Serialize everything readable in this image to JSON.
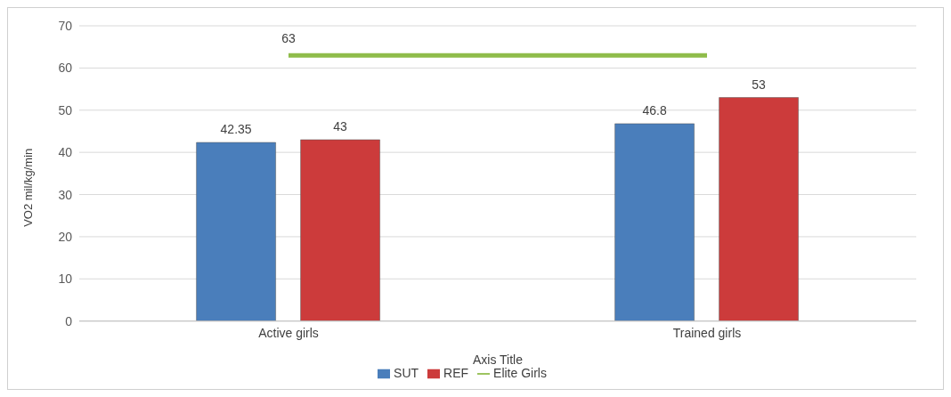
{
  "chart_data": {
    "type": "bar",
    "categories": [
      "Active girls",
      "Trained girls"
    ],
    "xlabel": "Axis Title",
    "ylabel": "VO2 mil/kg/min",
    "ylim": [
      0,
      70
    ],
    "yticks": [
      0,
      10,
      20,
      30,
      40,
      50,
      60,
      70
    ],
    "grid": "y",
    "legend": "bottom",
    "data_labels": true,
    "marker": "none",
    "series": [
      {
        "name": "SUT",
        "color": "#4a7ebb",
        "values": [
          42.35,
          46.8
        ]
      },
      {
        "name": "REF",
        "color": "#cc3b3b",
        "values": [
          43,
          53
        ]
      },
      {
        "name": "Elite Girls",
        "type": "line",
        "color": "#8fbc4a",
        "values": [
          63,
          63
        ],
        "value_labels": [
          "63",
          null
        ]
      }
    ]
  }
}
